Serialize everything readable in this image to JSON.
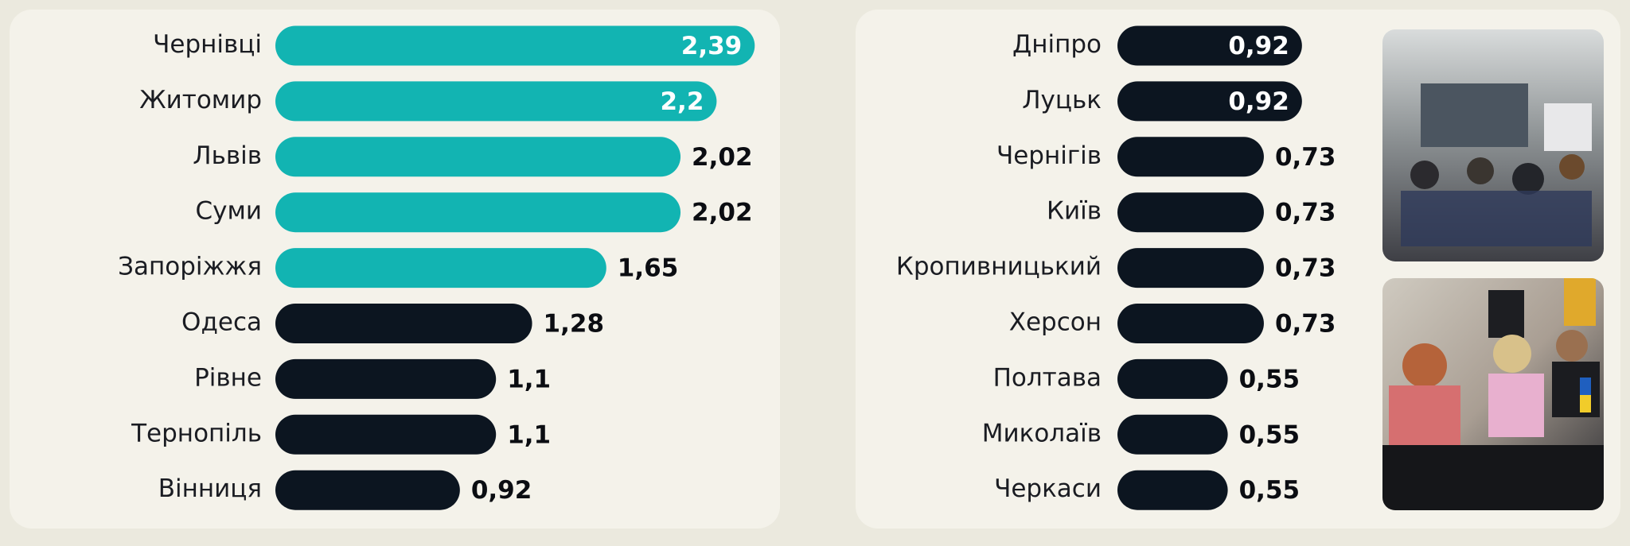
{
  "chart_data": [
    {
      "type": "bar",
      "orientation": "horizontal",
      "categories": [
        "Чернівці",
        "Житомир",
        "Львів",
        "Суми",
        "Запоріжжя",
        "Одеса",
        "Рівне",
        "Тернопіль",
        "Вінниця"
      ],
      "values": [
        2.39,
        2.2,
        2.02,
        2.02,
        1.65,
        1.28,
        1.1,
        1.1,
        0.92
      ],
      "value_labels": [
        "2,39",
        "2,2",
        "2,02",
        "2,02",
        "1,65",
        "1,28",
        "1,1",
        "1,1",
        "0,92"
      ],
      "colors": [
        "#12b4b2",
        "#12b4b2",
        "#12b4b2",
        "#12b4b2",
        "#12b4b2",
        "#0c1520",
        "#0c1520",
        "#0c1520",
        "#0c1520"
      ]
    },
    {
      "type": "bar",
      "orientation": "horizontal",
      "categories": [
        "Дніпро",
        "Луцьк",
        "Чернігів",
        "Київ",
        "Кропивницький",
        "Херсон",
        "Полтава",
        "Миколаїв",
        "Черкаси"
      ],
      "values": [
        0.92,
        0.92,
        0.73,
        0.73,
        0.73,
        0.73,
        0.55,
        0.55,
        0.55
      ],
      "value_labels": [
        "0,92",
        "0,92",
        "0,73",
        "0,73",
        "0,73",
        "0,73",
        "0,55",
        "0,55",
        "0,55"
      ],
      "colors": [
        "#0c1520",
        "#0c1520",
        "#0c1520",
        "#0c1520",
        "#0c1520",
        "#0c1520",
        "#0c1520",
        "#0c1520",
        "#0c1520"
      ]
    }
  ]
}
